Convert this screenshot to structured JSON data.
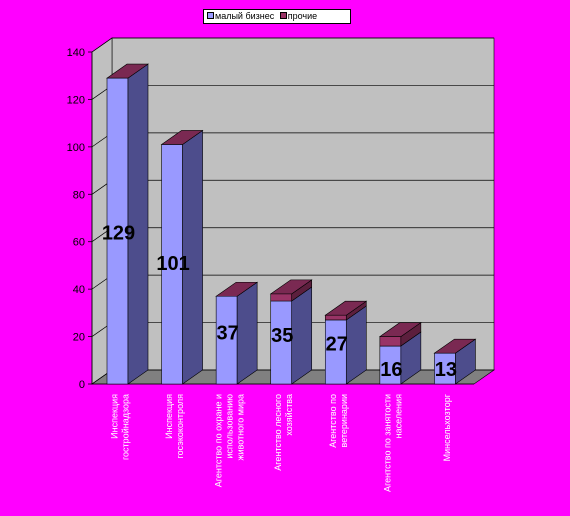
{
  "chart_data": {
    "type": "bar",
    "categories": [
      "Инспекция гостройнадзора",
      "Инспекция госэкоконтроля",
      "Агентство по охране и использованию животного мира",
      "Агентство лесного хозяйства",
      "Агентство по ветеринарии",
      "Агентство по занятости населения",
      "Минсельхозторг"
    ],
    "series": [
      {
        "name": "малый бизнес",
        "values": [
          129,
          101,
          37,
          35,
          27,
          16,
          13
        ]
      },
      {
        "name": "прочие",
        "values": [
          0,
          0,
          0,
          3,
          2,
          4,
          0
        ]
      }
    ],
    "data_labels": [
      "129",
      "101",
      "37",
      "35",
      "27",
      "16",
      "13"
    ],
    "ylim": [
      0,
      140
    ],
    "yticks": [
      0,
      20,
      40,
      60,
      80,
      100,
      120,
      140
    ],
    "grid": true,
    "legend_position": "top",
    "colors": {
      "page_background": "#ff00ff",
      "wall": "#c0c0c0",
      "floor": "#808080",
      "bar_front": "#9999ff",
      "bar_side": "#4d4d8c",
      "bar_top": "#6d6dc0",
      "other_front": "#993366",
      "other_side": "#5c1f3d",
      "other_top": "#7a2952"
    }
  }
}
